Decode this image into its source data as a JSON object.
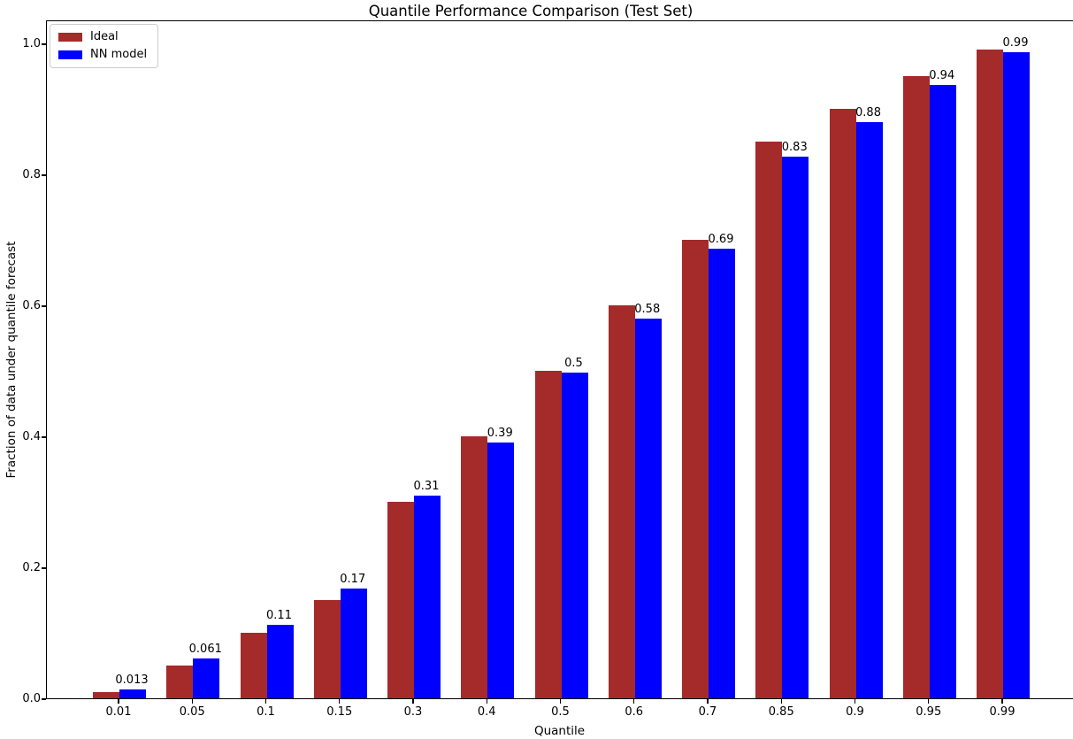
{
  "chart_data": {
    "type": "bar",
    "title": "Quantile Performance Comparison (Test Set)",
    "xlabel": "Quantile",
    "ylabel": "Fraction of data under quantile forecast",
    "categories": [
      "0.01",
      "0.05",
      "0.1",
      "0.15",
      "0.3",
      "0.4",
      "0.5",
      "0.6",
      "0.7",
      "0.85",
      "0.9",
      "0.95",
      "0.99"
    ],
    "series": [
      {
        "name": "Ideal",
        "color": "#A52A2A",
        "values": [
          0.01,
          0.05,
          0.1,
          0.15,
          0.3,
          0.4,
          0.5,
          0.6,
          0.7,
          0.85,
          0.9,
          0.95,
          0.99
        ]
      },
      {
        "name": "NN model",
        "color": "#0000FF",
        "values": [
          0.013,
          0.061,
          0.112,
          0.168,
          0.31,
          0.39,
          0.497,
          0.58,
          0.687,
          0.827,
          0.88,
          0.936,
          0.987
        ],
        "labels": [
          "0.013",
          "0.061",
          "0.11",
          "0.17",
          "0.31",
          "0.39",
          "0.5",
          "0.58",
          "0.69",
          "0.83",
          "0.88",
          "0.94",
          "0.99"
        ]
      }
    ],
    "yticks": [
      "0.0",
      "0.2",
      "0.4",
      "0.6",
      "0.8",
      "1.0"
    ],
    "ylim": [
      0,
      1.0365
    ],
    "grid": false,
    "legend_position": "upper-left",
    "axis_color": "#000000",
    "background_color": "#ffffff"
  }
}
